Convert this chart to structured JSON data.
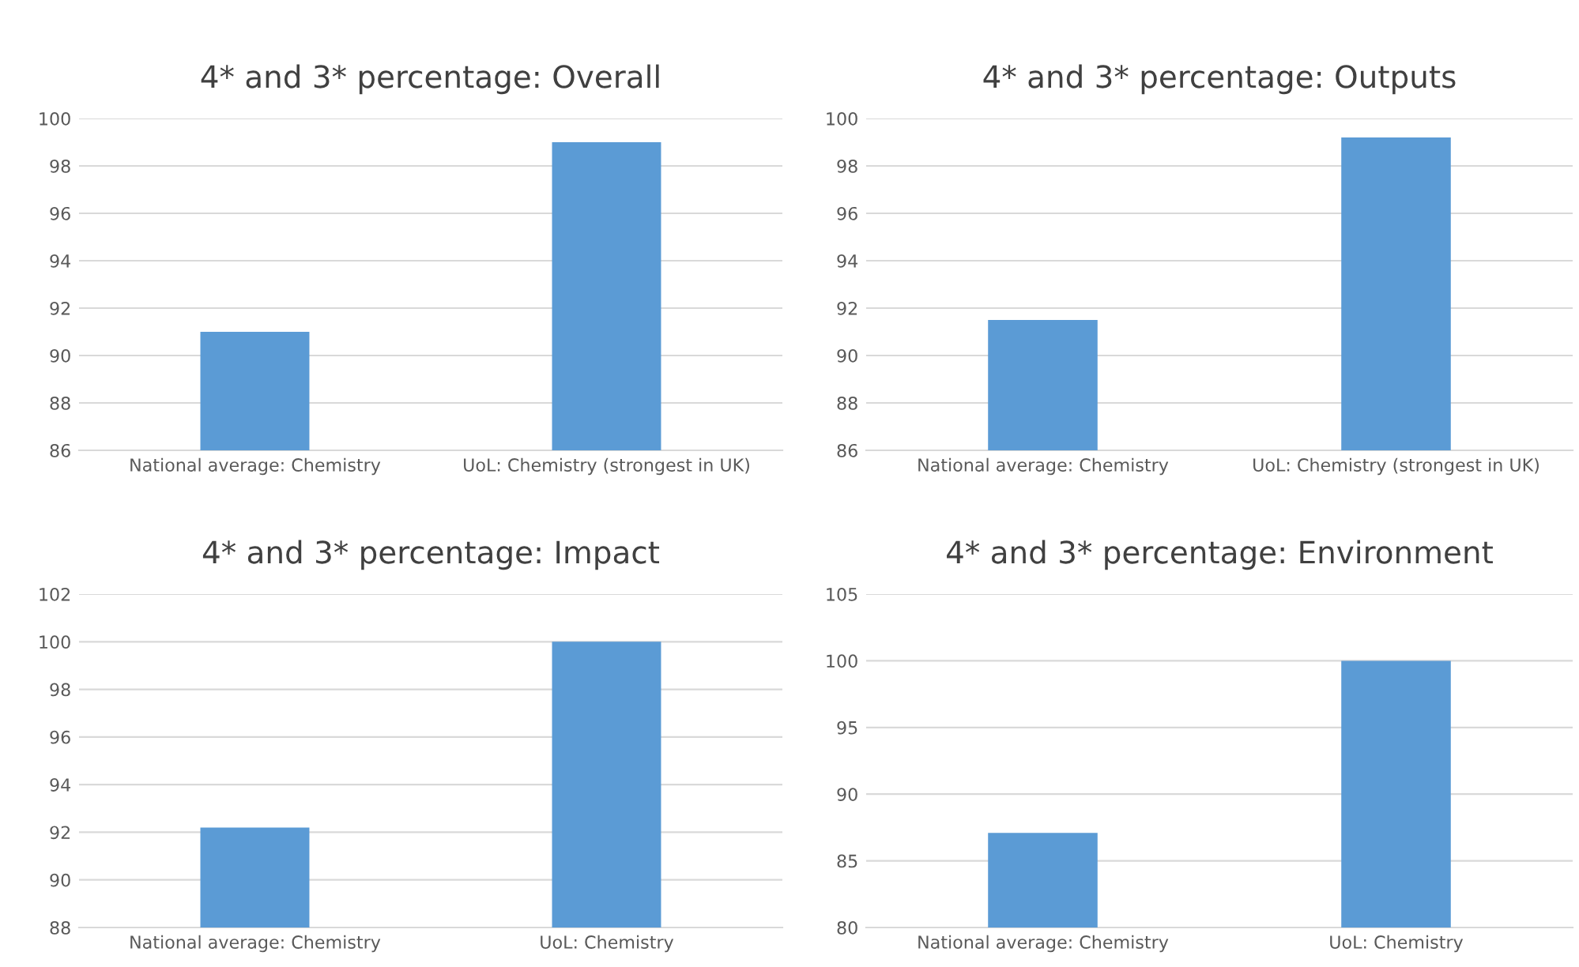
{
  "chart_data": [
    {
      "type": "bar",
      "title": "4* and 3* percentage: Overall",
      "categories": [
        "National average: Chemistry",
        "UoL: Chemistry (strongest in UK)"
      ],
      "values": [
        91,
        99
      ],
      "color": "#5b9bd5",
      "ylim": [
        86,
        100
      ],
      "yticks": [
        86,
        88,
        90,
        92,
        94,
        96,
        98,
        100
      ],
      "grid": "y"
    },
    {
      "type": "bar",
      "title": "4* and 3* percentage: Outputs",
      "categories": [
        "National average: Chemistry",
        "UoL: Chemistry (strongest in UK)"
      ],
      "values": [
        91.5,
        99.2
      ],
      "color": "#5b9bd5",
      "ylim": [
        86,
        100
      ],
      "yticks": [
        86,
        88,
        90,
        92,
        94,
        96,
        98,
        100
      ],
      "grid": "y"
    },
    {
      "type": "bar",
      "title": "4* and 3* percentage: Impact",
      "categories": [
        "National average: Chemistry",
        "UoL: Chemistry"
      ],
      "values": [
        92.2,
        100
      ],
      "color": "#5b9bd5",
      "ylim": [
        88,
        102
      ],
      "yticks": [
        88,
        90,
        92,
        94,
        96,
        98,
        100,
        102
      ],
      "grid": "y"
    },
    {
      "type": "bar",
      "title": "4* and 3* percentage: Environment",
      "categories": [
        "National average: Chemistry",
        "UoL: Chemistry"
      ],
      "values": [
        87.1,
        100
      ],
      "color": "#5b9bd5",
      "ylim": [
        80,
        105
      ],
      "yticks": [
        80,
        85,
        90,
        95,
        100,
        105
      ],
      "grid": "y"
    }
  ]
}
